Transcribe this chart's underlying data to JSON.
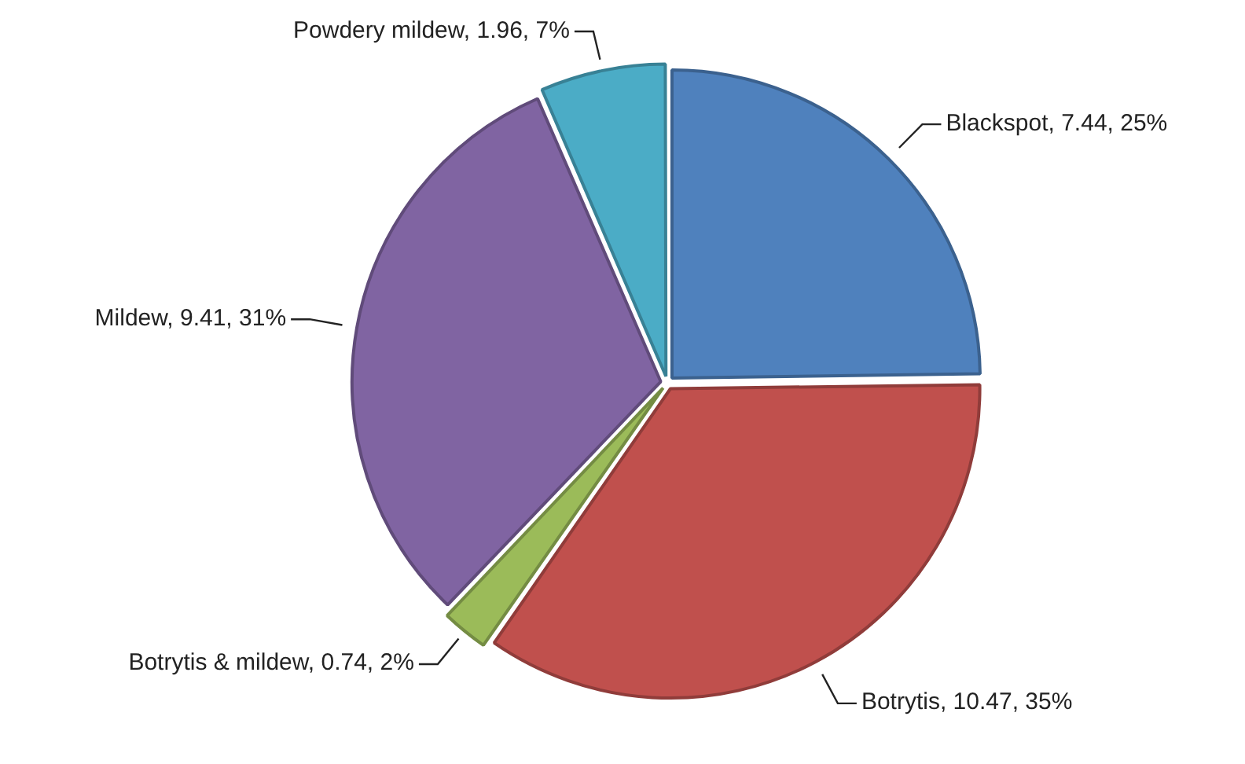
{
  "chart_data": {
    "type": "pie",
    "categories": [
      "Blackspot",
      "Botrytis",
      "Botrytis & mildew",
      "Mildew",
      "Powdery mildew"
    ],
    "values": [
      7.44,
      10.47,
      0.74,
      9.41,
      1.96
    ],
    "colors": [
      "#4f81bd",
      "#c0504d",
      "#9bbb59",
      "#8064a2",
      "#4bacc6"
    ],
    "value_labels": [
      "7.44, 25%",
      "10.47, 35%",
      "0.74, 2%",
      "9.41, 31%",
      "1.96, 7%"
    ]
  }
}
